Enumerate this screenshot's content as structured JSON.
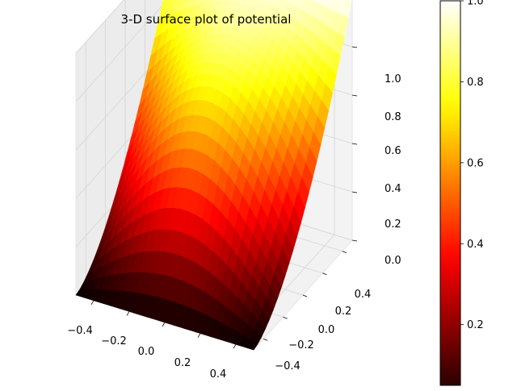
{
  "chart_data": {
    "type": "surface",
    "title": "3-D surface plot of potential",
    "colormap": "hot",
    "x_ticks": [
      "−0.4",
      "−0.2",
      "0.0",
      "0.2",
      "0.4"
    ],
    "y_ticks": [
      "−0.4",
      "−0.2",
      "0.0",
      "0.2",
      "0.4"
    ],
    "z_ticks": [
      "0.0",
      "0.2",
      "0.4",
      "0.6",
      "0.8",
      "1.0"
    ],
    "xlim": [
      -0.5,
      0.5
    ],
    "ylim": [
      -0.5,
      0.5
    ],
    "zlim": [
      0,
      1
    ],
    "colorbar": {
      "ticks": [
        "0.2",
        "0.4",
        "0.6",
        "0.8",
        "1.0"
      ],
      "range": [
        0.05,
        1.0
      ]
    },
    "grid": true,
    "surface": {
      "boundary_value_back_y": 1.0,
      "boundary_value_front_y": 0.0,
      "description_value": "potential",
      "center_peak": 0.08,
      "front_edge_center_value": 0.05
    }
  }
}
